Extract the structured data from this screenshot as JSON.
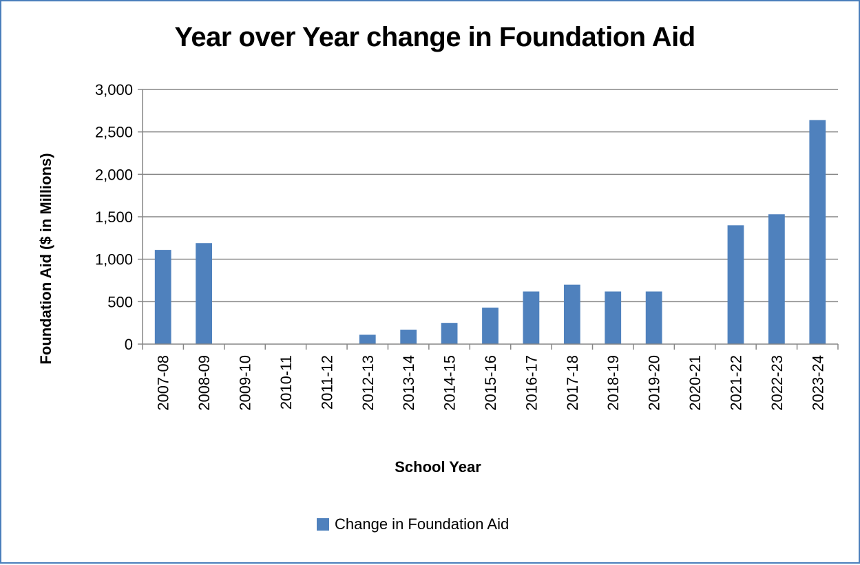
{
  "chart_data": {
    "type": "bar",
    "title": "Year over Year change in Foundation Aid",
    "xlabel": "School Year",
    "ylabel": "Foundation Aid ($ in Millions)",
    "ylim": [
      0,
      3000
    ],
    "yticks": [
      "0",
      "500",
      "1,000",
      "1,500",
      "2,000",
      "2,500",
      "3,000"
    ],
    "ytick_values": [
      0,
      500,
      1000,
      1500,
      2000,
      2500,
      3000
    ],
    "grid": true,
    "legend_position": "bottom",
    "categories": [
      "2007-08",
      "2008-09",
      "2009-10",
      "2010-11",
      "2011-12",
      "2012-13",
      "2013-14",
      "2014-15",
      "2015-16",
      "2016-17",
      "2017-18",
      "2018-19",
      "2019-20",
      "2020-21",
      "2021-22",
      "2022-23",
      "2023-24"
    ],
    "series": [
      {
        "name": "Change in Foundation Aid",
        "color": "#4f81bd",
        "values": [
          1110,
          1190,
          0,
          0,
          0,
          110,
          170,
          250,
          430,
          620,
          700,
          620,
          620,
          0,
          1400,
          1530,
          2640
        ]
      }
    ]
  }
}
